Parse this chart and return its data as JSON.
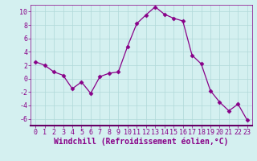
{
  "x": [
    0,
    1,
    2,
    3,
    4,
    5,
    6,
    7,
    8,
    9,
    10,
    11,
    12,
    13,
    14,
    15,
    16,
    17,
    18,
    19,
    20,
    21,
    22,
    23
  ],
  "y": [
    2.5,
    2.0,
    1.0,
    0.5,
    -1.5,
    -0.5,
    -2.2,
    0.3,
    0.8,
    1.0,
    4.8,
    8.2,
    9.5,
    10.7,
    9.6,
    9.0,
    8.6,
    3.5,
    2.2,
    -1.8,
    -3.5,
    -4.8,
    -3.8,
    -6.2
  ],
  "line_color": "#880088",
  "marker": "D",
  "marker_size": 2.5,
  "bg_color": "#d4f0f0",
  "grid_color": "#b0d8d8",
  "xlabel": "Windchill (Refroidissement éolien,°C)",
  "xlim": [
    -0.5,
    23.5
  ],
  "ylim": [
    -7,
    11
  ],
  "yticks": [
    -6,
    -4,
    -2,
    0,
    2,
    4,
    6,
    8,
    10
  ],
  "xticks": [
    0,
    1,
    2,
    3,
    4,
    5,
    6,
    7,
    8,
    9,
    10,
    11,
    12,
    13,
    14,
    15,
    16,
    17,
    18,
    19,
    20,
    21,
    22,
    23
  ],
  "tick_label_fontsize": 6.0,
  "xlabel_fontsize": 7.0,
  "tick_color": "#880088",
  "label_color": "#880088",
  "spine_color": "#880088",
  "spine_bottom_color": "#660066"
}
